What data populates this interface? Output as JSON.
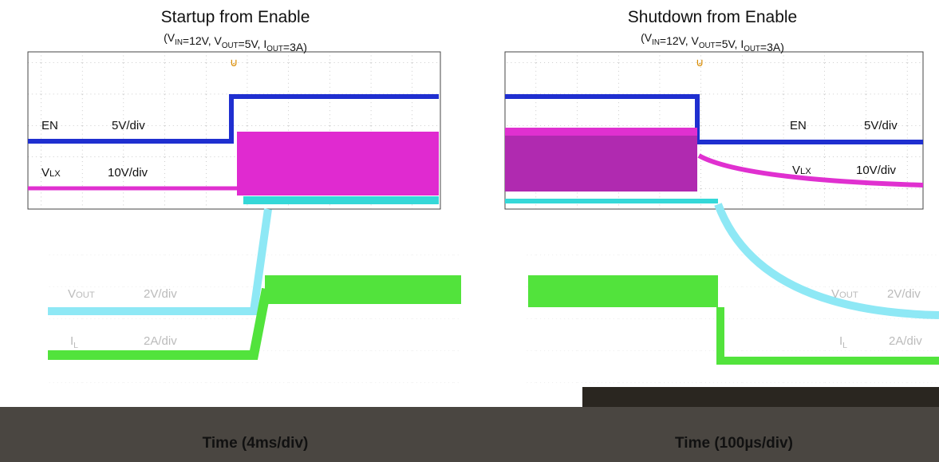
{
  "left": {
    "title": "Startup from Enable",
    "subtitle": [
      {
        "text": "(V"
      },
      {
        "text": "IN",
        "sub": true
      },
      {
        "text": "=12V, V"
      },
      {
        "text": "OUT",
        "sub": true
      },
      {
        "text": "=5V, I"
      },
      {
        "text": "OUT",
        "sub": true
      },
      {
        "text": "=3A)"
      }
    ],
    "channels": [
      {
        "name": "EN",
        "scale": "5V/div"
      },
      {
        "name": [
          {
            "text": "V"
          },
          {
            "text": "LX",
            "small": true
          }
        ],
        "scale": "10V/div"
      },
      {
        "name": [
          {
            "text": "V"
          },
          {
            "text": "OUT",
            "small": true
          }
        ],
        "scale": "2V/div"
      },
      {
        "name": [
          {
            "text": "I"
          },
          {
            "text": "L",
            "sub": true
          }
        ],
        "scale": "2A/div"
      }
    ],
    "time_scale": "Time (4ms/div)"
  },
  "right": {
    "title": "Shutdown from Enable",
    "subtitle": [
      {
        "text": "(V"
      },
      {
        "text": "IN",
        "sub": true
      },
      {
        "text": "=12V, V"
      },
      {
        "text": "OUT",
        "sub": true
      },
      {
        "text": "=5V, I"
      },
      {
        "text": "OUT",
        "sub": true
      },
      {
        "text": "=3A)"
      }
    ],
    "channels": [
      {
        "name": "EN",
        "scale": "5V/div"
      },
      {
        "name": [
          {
            "text": "V"
          },
          {
            "text": "LX",
            "small": true
          }
        ],
        "scale": "10V/div"
      },
      {
        "name": [
          {
            "text": "V"
          },
          {
            "text": "OUT",
            "small": true
          }
        ],
        "scale": "2V/div"
      },
      {
        "name": [
          {
            "text": "I"
          },
          {
            "text": "L",
            "sub": true
          }
        ],
        "scale": "2A/div"
      }
    ],
    "time_scale": "Time (100µs/div)"
  }
}
